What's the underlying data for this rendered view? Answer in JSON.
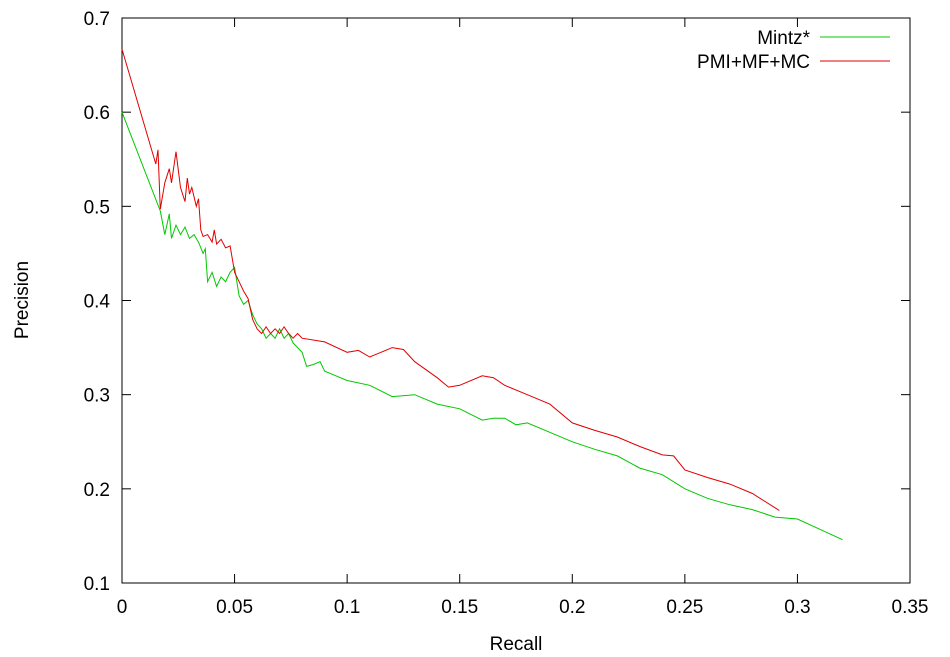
{
  "chart_data": {
    "type": "line",
    "title": "",
    "xlabel": "Recall",
    "ylabel": "Precision",
    "xlim": [
      0,
      0.35
    ],
    "ylim": [
      0.1,
      0.7
    ],
    "xticks": [
      "0",
      "0.05",
      "0.1",
      "0.15",
      "0.2",
      "0.25",
      "0.3",
      "0.35"
    ],
    "yticks": [
      "0.1",
      "0.2",
      "0.3",
      "0.4",
      "0.5",
      "0.6",
      "0.7"
    ],
    "grid": false,
    "legend_position": "top-right",
    "series": [
      {
        "name": "Mintz*",
        "color": "#00c800",
        "points": [
          [
            0,
            0.6
          ],
          [
            0.017,
            0.495
          ],
          [
            0.019,
            0.47
          ],
          [
            0.021,
            0.492
          ],
          [
            0.022,
            0.466
          ],
          [
            0.024,
            0.48
          ],
          [
            0.026,
            0.47
          ],
          [
            0.028,
            0.478
          ],
          [
            0.03,
            0.466
          ],
          [
            0.032,
            0.47
          ],
          [
            0.034,
            0.462
          ],
          [
            0.036,
            0.45
          ],
          [
            0.037,
            0.455
          ],
          [
            0.038,
            0.42
          ],
          [
            0.04,
            0.43
          ],
          [
            0.042,
            0.415
          ],
          [
            0.044,
            0.425
          ],
          [
            0.046,
            0.42
          ],
          [
            0.048,
            0.43
          ],
          [
            0.05,
            0.435
          ],
          [
            0.052,
            0.405
          ],
          [
            0.054,
            0.396
          ],
          [
            0.056,
            0.4
          ],
          [
            0.058,
            0.385
          ],
          [
            0.06,
            0.375
          ],
          [
            0.062,
            0.37
          ],
          [
            0.064,
            0.36
          ],
          [
            0.066,
            0.365
          ],
          [
            0.068,
            0.36
          ],
          [
            0.07,
            0.37
          ],
          [
            0.072,
            0.36
          ],
          [
            0.074,
            0.365
          ],
          [
            0.076,
            0.355
          ],
          [
            0.078,
            0.35
          ],
          [
            0.08,
            0.345
          ],
          [
            0.082,
            0.33
          ],
          [
            0.085,
            0.332
          ],
          [
            0.088,
            0.335
          ],
          [
            0.09,
            0.325
          ],
          [
            0.095,
            0.32
          ],
          [
            0.1,
            0.315
          ],
          [
            0.11,
            0.31
          ],
          [
            0.12,
            0.298
          ],
          [
            0.13,
            0.3
          ],
          [
            0.14,
            0.29
          ],
          [
            0.15,
            0.285
          ],
          [
            0.16,
            0.273
          ],
          [
            0.165,
            0.275
          ],
          [
            0.17,
            0.275
          ],
          [
            0.175,
            0.268
          ],
          [
            0.18,
            0.27
          ],
          [
            0.19,
            0.26
          ],
          [
            0.2,
            0.25
          ],
          [
            0.21,
            0.242
          ],
          [
            0.22,
            0.235
          ],
          [
            0.23,
            0.222
          ],
          [
            0.24,
            0.215
          ],
          [
            0.25,
            0.2
          ],
          [
            0.26,
            0.19
          ],
          [
            0.27,
            0.183
          ],
          [
            0.28,
            0.178
          ],
          [
            0.29,
            0.17
          ],
          [
            0.3,
            0.168
          ],
          [
            0.31,
            0.157
          ],
          [
            0.32,
            0.146
          ]
        ]
      },
      {
        "name": "PMI+MF+MC",
        "color": "#e00000",
        "points": [
          [
            0,
            0.667
          ],
          [
            0.015,
            0.545
          ],
          [
            0.016,
            0.56
          ],
          [
            0.017,
            0.497
          ],
          [
            0.019,
            0.525
          ],
          [
            0.021,
            0.54
          ],
          [
            0.022,
            0.525
          ],
          [
            0.024,
            0.558
          ],
          [
            0.026,
            0.52
          ],
          [
            0.028,
            0.505
          ],
          [
            0.029,
            0.53
          ],
          [
            0.03,
            0.513
          ],
          [
            0.031,
            0.52
          ],
          [
            0.033,
            0.5
          ],
          [
            0.034,
            0.508
          ],
          [
            0.035,
            0.475
          ],
          [
            0.036,
            0.468
          ],
          [
            0.038,
            0.47
          ],
          [
            0.04,
            0.462
          ],
          [
            0.041,
            0.475
          ],
          [
            0.042,
            0.46
          ],
          [
            0.044,
            0.465
          ],
          [
            0.046,
            0.456
          ],
          [
            0.048,
            0.458
          ],
          [
            0.05,
            0.43
          ],
          [
            0.052,
            0.42
          ],
          [
            0.054,
            0.41
          ],
          [
            0.056,
            0.402
          ],
          [
            0.058,
            0.38
          ],
          [
            0.06,
            0.37
          ],
          [
            0.062,
            0.365
          ],
          [
            0.064,
            0.372
          ],
          [
            0.066,
            0.365
          ],
          [
            0.068,
            0.37
          ],
          [
            0.07,
            0.365
          ],
          [
            0.072,
            0.372
          ],
          [
            0.074,
            0.365
          ],
          [
            0.076,
            0.36
          ],
          [
            0.078,
            0.365
          ],
          [
            0.08,
            0.36
          ],
          [
            0.09,
            0.356
          ],
          [
            0.1,
            0.345
          ],
          [
            0.105,
            0.347
          ],
          [
            0.11,
            0.34
          ],
          [
            0.12,
            0.35
          ],
          [
            0.125,
            0.348
          ],
          [
            0.13,
            0.335
          ],
          [
            0.14,
            0.318
          ],
          [
            0.145,
            0.308
          ],
          [
            0.15,
            0.31
          ],
          [
            0.16,
            0.32
          ],
          [
            0.165,
            0.318
          ],
          [
            0.17,
            0.31
          ],
          [
            0.18,
            0.3
          ],
          [
            0.19,
            0.29
          ],
          [
            0.2,
            0.27
          ],
          [
            0.21,
            0.262
          ],
          [
            0.22,
            0.255
          ],
          [
            0.23,
            0.245
          ],
          [
            0.24,
            0.236
          ],
          [
            0.245,
            0.235
          ],
          [
            0.25,
            0.22
          ],
          [
            0.26,
            0.212
          ],
          [
            0.27,
            0.205
          ],
          [
            0.28,
            0.195
          ],
          [
            0.29,
            0.18
          ],
          [
            0.292,
            0.177
          ]
        ]
      }
    ]
  }
}
